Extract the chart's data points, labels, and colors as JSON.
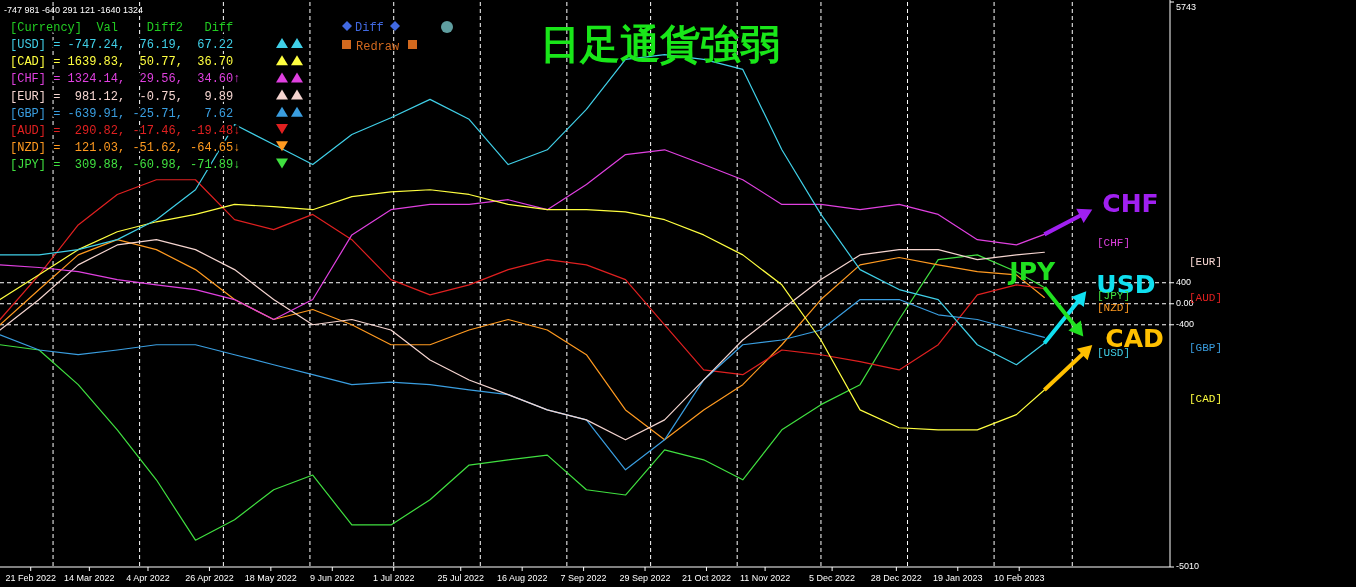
{
  "chart_data": {
    "type": "line",
    "title": "日足通貨強弱",
    "x": [
      "2022-02-10",
      "2022-02-24",
      "2022-03-10",
      "2022-03-24",
      "2022-04-07",
      "2022-04-21",
      "2022-05-05",
      "2022-05-19",
      "2022-06-02",
      "2022-06-16",
      "2022-06-30",
      "2022-07-14",
      "2022-07-28",
      "2022-08-11",
      "2022-08-25",
      "2022-09-08",
      "2022-09-22",
      "2022-10-06",
      "2022-10-20",
      "2022-11-03",
      "2022-11-17",
      "2022-12-01",
      "2022-12-15",
      "2022-12-29",
      "2023-01-12",
      "2023-01-26",
      "2023-02-09",
      "2023-02-19"
    ],
    "xlim": [
      "2022-02-10",
      "2023-04-05"
    ],
    "xticks": [
      {
        "value": "2022-02-21",
        "label": "21 Feb 2022"
      },
      {
        "value": "2022-03-14",
        "label": "14 Mar 2022"
      },
      {
        "value": "2022-04-04",
        "label": "4 Apr 2022"
      },
      {
        "value": "2022-04-26",
        "label": "26 Apr 2022"
      },
      {
        "value": "2022-05-18",
        "label": "18 May 2022"
      },
      {
        "value": "2022-06-09",
        "label": "9 Jun 2022"
      },
      {
        "value": "2022-07-01",
        "label": "1 Jul 2022"
      },
      {
        "value": "2022-07-25",
        "label": "25 Jul 2022"
      },
      {
        "value": "2022-08-16",
        "label": "16 Aug 2022"
      },
      {
        "value": "2022-09-07",
        "label": "7 Sep 2022"
      },
      {
        "value": "2022-09-29",
        "label": "29 Sep 2022"
      },
      {
        "value": "2022-10-21",
        "label": "21 Oct 2022"
      },
      {
        "value": "2022-11-11",
        "label": "11 Nov 2022"
      },
      {
        "value": "2022-12-05",
        "label": "5 Dec 2022"
      },
      {
        "value": "2022-12-28",
        "label": "28 Dec 2022"
      },
      {
        "value": "2023-01-19",
        "label": "19 Jan 2023"
      },
      {
        "value": "2023-02-10",
        "label": "10 Feb 2023"
      }
    ],
    "ylim": [
      -5010,
      5743
    ],
    "yticks": [
      5743,
      400,
      {
        "value": 0,
        "label": "0.00"
      },
      -400,
      -5010
    ],
    "series": [
      {
        "color": "#40d0e8",
        "values": [
          930,
          930,
          1030,
          1220,
          1600,
          2170,
          3410,
          3030,
          2650,
          3220,
          3540,
          3890,
          3510,
          2650,
          2930,
          3700,
          4650,
          4740,
          4650,
          4460,
          2930,
          1700,
          650,
          270,
          80,
          -780,
          -1160,
          -750
        ]
      },
      {
        "color": "#ffff40",
        "values": [
          80,
          550,
          1030,
          1370,
          1560,
          1700,
          1890,
          1850,
          1790,
          2040,
          2130,
          2170,
          2080,
          1890,
          1790,
          1790,
          1750,
          1600,
          1310,
          930,
          360,
          -690,
          -2020,
          -2360,
          -2400,
          -2400,
          -2110,
          -1640
        ]
      },
      {
        "color": "#e040e0",
        "values": [
          740,
          690,
          610,
          460,
          360,
          270,
          80,
          -300,
          80,
          1310,
          1790,
          1890,
          1890,
          1980,
          1790,
          2270,
          2840,
          2930,
          2650,
          2360,
          1890,
          1890,
          1790,
          1890,
          1700,
          1220,
          1120,
          1320
        ]
      },
      {
        "color": "#f5d5d0",
        "values": [
          -500,
          80,
          740,
          1120,
          1220,
          1030,
          650,
          80,
          -400,
          -300,
          -500,
          -1070,
          -1450,
          -1730,
          -2020,
          -2210,
          -2590,
          -2210,
          -1450,
          -690,
          -110,
          460,
          930,
          1030,
          1030,
          840,
          930,
          980
        ]
      },
      {
        "color": "#3a9ee0",
        "values": [
          -590,
          -880,
          -970,
          -880,
          -780,
          -780,
          -970,
          -1160,
          -1350,
          -1540,
          -1490,
          -1540,
          -1640,
          -1730,
          -2020,
          -2210,
          -3160,
          -2590,
          -1450,
          -780,
          -690,
          -500,
          80,
          80,
          -210,
          -300,
          -500,
          -640
        ]
      },
      {
        "color": "#e02020",
        "values": [
          -300,
          550,
          1500,
          2080,
          2360,
          2360,
          1600,
          1410,
          1700,
          1220,
          460,
          170,
          360,
          650,
          840,
          740,
          460,
          -400,
          -1260,
          -1350,
          -880,
          -970,
          -1100,
          -1260,
          -780,
          170,
          360,
          290
        ]
      },
      {
        "color": "#ff9a20",
        "values": [
          -400,
          270,
          930,
          1220,
          1030,
          650,
          80,
          -300,
          -110,
          -400,
          -780,
          -780,
          -500,
          -300,
          -500,
          -970,
          -2020,
          -2590,
          -2020,
          -1540,
          -780,
          80,
          740,
          880,
          740,
          610,
          550,
          120
        ]
      },
      {
        "color": "#40e040",
        "values": [
          -780,
          -880,
          -1540,
          -2400,
          -3350,
          -4500,
          -4110,
          -3540,
          -3260,
          -4210,
          -4210,
          -3730,
          -3070,
          -2970,
          -2880,
          -3540,
          -3640,
          -2780,
          -2970,
          -3350,
          -2400,
          -1920,
          -1540,
          -300,
          840,
          930,
          610,
          310
        ]
      }
    ],
    "ref_lines": [
      {
        "axis": "y",
        "value": 400,
        "color": "#ffffff",
        "line_style": "dashed"
      },
      {
        "axis": "y",
        "value": 0,
        "color": "#ffffff",
        "line_style": "dashed"
      },
      {
        "axis": "y",
        "value": -400,
        "color": "#ffffff",
        "line_style": "dashed"
      },
      {
        "axis": "x",
        "value": "2022-03-01",
        "color": "#ffffff",
        "line_style": "dashed"
      },
      {
        "axis": "x",
        "value": "2022-04-01",
        "color": "#ffffff",
        "line_style": "dashed"
      },
      {
        "axis": "x",
        "value": "2022-05-01",
        "color": "#ffffff",
        "line_style": "dashed"
      },
      {
        "axis": "x",
        "value": "2022-06-01",
        "color": "#ffffff",
        "line_style": "dashed"
      },
      {
        "axis": "x",
        "value": "2022-07-01",
        "color": "#ffffff",
        "line_style": "dashed"
      },
      {
        "axis": "x",
        "value": "2022-08-01",
        "color": "#ffffff",
        "line_style": "dashed"
      },
      {
        "axis": "x",
        "value": "2022-09-01",
        "color": "#ffffff",
        "line_style": "dashed"
      },
      {
        "axis": "x",
        "value": "2022-10-01",
        "color": "#ffffff",
        "line_style": "dashed"
      },
      {
        "axis": "x",
        "value": "2022-11-01",
        "color": "#ffffff",
        "line_style": "dashed"
      },
      {
        "axis": "x",
        "value": "2022-12-01",
        "color": "#ffffff",
        "line_style": "dashed"
      },
      {
        "axis": "x",
        "value": "2023-01-01",
        "color": "#ffffff",
        "line_style": "dashed"
      },
      {
        "axis": "x",
        "value": "2023-02-01",
        "color": "#ffffff",
        "line_style": "dashed"
      },
      {
        "axis": "x",
        "value": "2023-03-01",
        "color": "#ffffff",
        "line_style": "dashed"
      }
    ],
    "annotations": [
      "-747 981 -640 291 121 -1640 1324",
      "[Currency]  Val    Diff2   Diff",
      "[USD] = -747.24,  76.19,  67.22",
      "[CAD] = 1639.83,  50.77,  36.70",
      "[CHF] = 1324.14,  29.56,  34.60↑",
      "[EUR] =  981.12,  -0.75,   9.89",
      "[GBP] = -639.91, -25.71,   7.62",
      "[AUD] =  290.82, -17.46, -19.48↓",
      "[NZD] =  121.03, -51.62, -64.65↓",
      "[JPY] =  309.88, -60.98, -71.89↓",
      "Diff",
      "Redraw",
      {
        "text": "CHF",
        "x": "2023-02-19",
        "y": 1320
      },
      {
        "text": "USD",
        "x": "2023-02-19",
        "y": -750
      },
      {
        "text": "JPY",
        "x": "2023-02-19",
        "y": 310
      },
      {
        "text": "CAD",
        "x": "2023-02-19",
        "y": -1640
      },
      "[CHF]",
      "[JPY]",
      "[NZD]",
      "[USD]",
      "[EUR]",
      "[AUD]",
      "[GBP]",
      "[CAD]"
    ]
  }
}
